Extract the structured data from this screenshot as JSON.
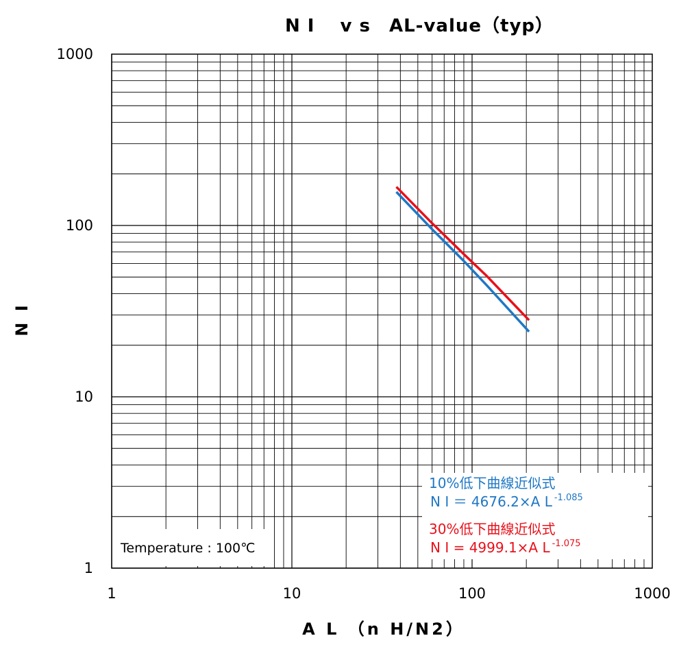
{
  "chart_data": {
    "type": "line",
    "title": "N I　 v s　AL-value（typ）",
    "xlabel": "A L （n H/N2）",
    "ylabel": "N I",
    "x_scale": "log",
    "y_scale": "log",
    "xlim": [
      1,
      1000
    ],
    "ylim": [
      1,
      1000
    ],
    "x_ticks": [
      "1",
      "10",
      "100",
      "1000"
    ],
    "y_ticks": [
      "1",
      "10",
      "100",
      "1000"
    ],
    "grid": true,
    "series": [
      {
        "color": "#1f77c4",
        "x": [
          38,
          60,
          90,
          120,
          207
        ],
        "y": [
          157,
          95,
          62,
          45,
          24
        ]
      },
      {
        "color": "#e8101a",
        "x": [
          38,
          60,
          90,
          120,
          207
        ],
        "y": [
          168,
          103,
          68,
          51,
          28
        ]
      }
    ],
    "annotations": {
      "blue_label": "10%低下曲線近似式",
      "blue_equation": "N I ＝ 4676.2×A L",
      "blue_exponent": "-1.085",
      "red_label": "30%低下曲線近似式",
      "red_equation": "N I = 4999.1×A L",
      "red_exponent": "-1.075",
      "temperature": "Temperature : 100℃"
    }
  }
}
